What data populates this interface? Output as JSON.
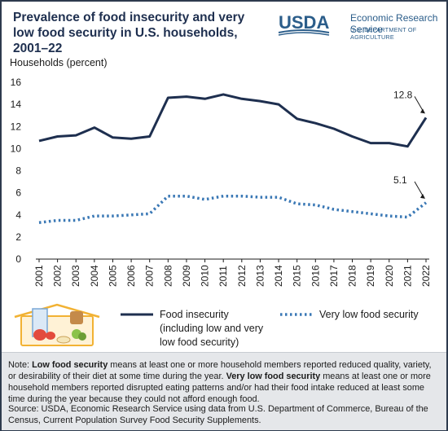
{
  "header": {
    "title": "Prevalence of food insecurity and very low food security in U.S. households, 2001–22",
    "logo_name": "USDA",
    "agency": "Economic Research Service",
    "department": "U.S. DEPARTMENT OF AGRICULTURE"
  },
  "colors": {
    "food_insecurity": "#1e2f4f",
    "very_low": "#3a78b5",
    "notes_bg": "#e5e7ea"
  },
  "chart_data": {
    "type": "line",
    "ylabel": "Households (percent)",
    "ylim": [
      0,
      16
    ],
    "yticks": [
      0,
      2,
      4,
      6,
      8,
      10,
      12,
      14,
      16
    ],
    "x": [
      "2001",
      "2002",
      "2003",
      "2004",
      "2005",
      "2006",
      "2007",
      "2008",
      "2009",
      "2010",
      "2011",
      "2012",
      "2013",
      "2014",
      "2015",
      "2016",
      "2017",
      "2018",
      "2019",
      "2020",
      "2021",
      "2022"
    ],
    "grid": false,
    "legend_placement": "bottom",
    "series": [
      {
        "name": "Food insecurity (including low and very low food security)",
        "style": "solid",
        "values": [
          10.7,
          11.1,
          11.2,
          11.9,
          11.0,
          10.9,
          11.1,
          14.6,
          14.7,
          14.5,
          14.9,
          14.5,
          14.3,
          14.0,
          12.7,
          12.3,
          11.8,
          11.1,
          10.5,
          10.5,
          10.2,
          12.8
        ]
      },
      {
        "name": "Very low food security",
        "style": "dotted",
        "values": [
          3.3,
          3.5,
          3.5,
          3.9,
          3.9,
          4.0,
          4.1,
          5.7,
          5.7,
          5.4,
          5.7,
          5.7,
          5.6,
          5.6,
          5.0,
          4.9,
          4.5,
          4.3,
          4.1,
          3.9,
          3.8,
          5.1
        ]
      }
    ],
    "annotations": [
      {
        "label": "12.8",
        "series": 0,
        "x": "2022"
      },
      {
        "label": "5.1",
        "series": 1,
        "x": "2022"
      }
    ]
  },
  "legend": {
    "food_insecurity_label": "Food insecurity (including low and very low food security)",
    "very_low_label": "Very low food security"
  },
  "notes": {
    "note_prefix": "Note: ",
    "low_term": "Low food security",
    "low_def": " means at least one or more household members reported reduced quality, variety, or desirability of their diet at some time during the year. ",
    "very_low_term": "Very low food security",
    "very_low_def": " means at least one or more household members reported disrupted eating patterns and/or had their food intake reduced at least some time during the year because they could not afford enough food.",
    "source": "Source: USDA, Economic Research Service using data from U.S. Department of Commerce, Bureau of the Census, Current Population Survey Food Security Supplements."
  }
}
